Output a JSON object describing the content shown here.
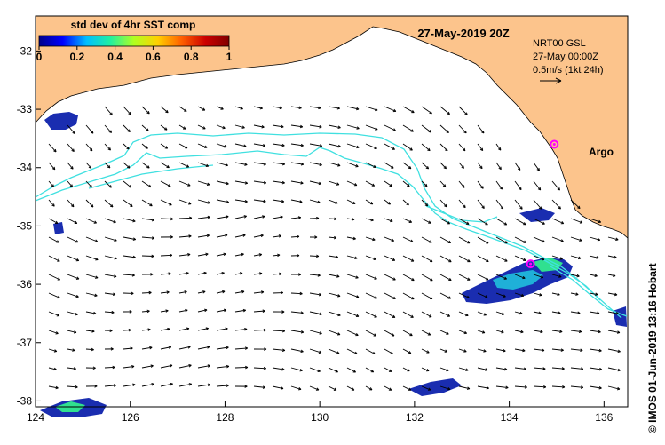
{
  "colorbar": {
    "title": "std dev of 4hr SST comp",
    "ticks": [
      "0",
      "0.2",
      "0.4",
      "0.6",
      "0.8",
      "1"
    ],
    "range": [
      0,
      1
    ],
    "colors": [
      "#00008b",
      "#0000ff",
      "#00bfff",
      "#20f0a0",
      "#b0ff20",
      "#ffd000",
      "#ff6000",
      "#cc0000",
      "#800000"
    ]
  },
  "map": {
    "date_title": "27-May-2019 20Z",
    "product": "NRT00 GSL",
    "valid_time": "27-May 00:00Z",
    "scale_label": "0.5m/s (1kt 24h)",
    "argo_label": "Argo",
    "credit": "© IMOS 01-Jun-2019 13:16 Hobart",
    "lon_range": [
      124,
      136.5
    ],
    "lat_range": [
      -38.1,
      -31.4
    ],
    "x_ticks": [
      "124",
      "126",
      "128",
      "130",
      "132",
      "134",
      "136"
    ],
    "y_ticks": [
      "-32",
      "-33",
      "-34",
      "-35",
      "-36",
      "-37",
      "-38"
    ],
    "land_color": "#fcc48c",
    "track_color": "#40e0e0",
    "argo_color": "#ff00ff"
  },
  "argo_floats": [
    {
      "lon": 134.95,
      "lat": -33.6
    },
    {
      "lon": 134.45,
      "lat": -35.65
    }
  ]
}
